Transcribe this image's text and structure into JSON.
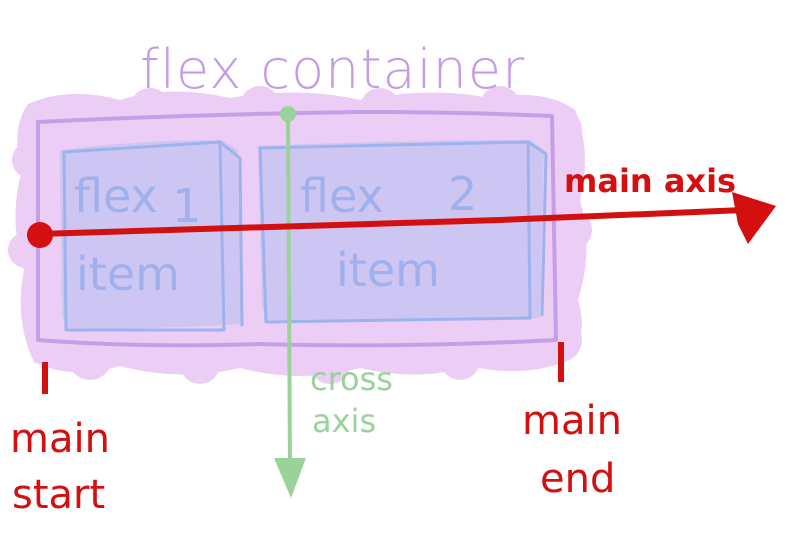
{
  "diagram": {
    "container_label": "flex container",
    "items": [
      {
        "number": "1",
        "word1": "flex",
        "word2": "item"
      },
      {
        "number": "2",
        "word1": "flex",
        "word2": "item"
      }
    ],
    "main_axis_label": "main axis",
    "cross_axis_label": [
      "cross",
      "axis"
    ],
    "main_start_label": [
      "main",
      "start"
    ],
    "main_end_label": [
      "main",
      "end"
    ]
  },
  "colors": {
    "container_fill": "#eccdf6",
    "container_border": "#c69ee6",
    "item_fill": "#cdc6f3",
    "item_border": "#9eb2ec",
    "main_axis": "#d40f0f",
    "cross_axis": "#9ad39a"
  }
}
